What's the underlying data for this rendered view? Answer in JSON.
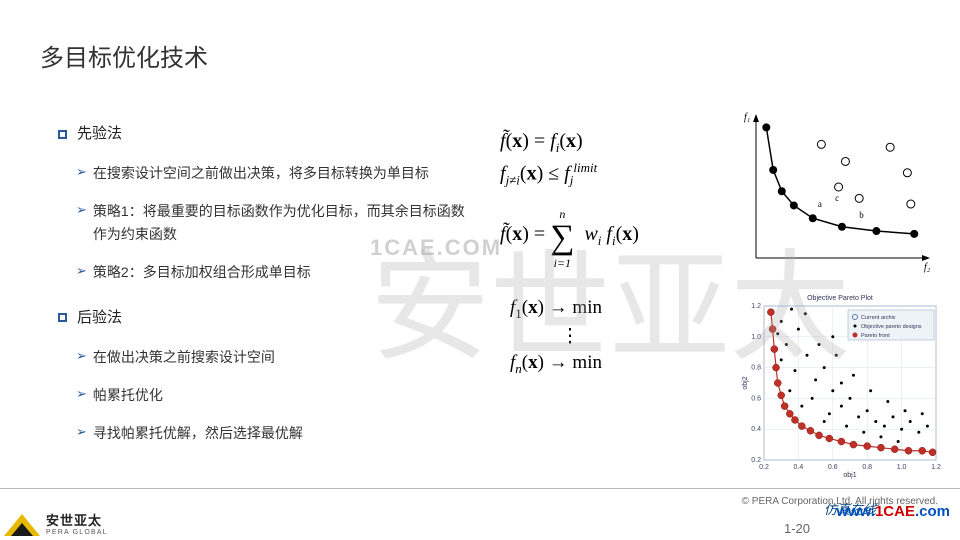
{
  "title": "多目标优化技术",
  "section1": {
    "heading": "先验法",
    "items": [
      "在搜索设计空间之前做出决策，将多目标转换为单目标",
      "策略1：将最重要的目标函数作为优化目标，而其余目标函数作为约束函数",
      "策略2：多目标加权组合形成单目标"
    ]
  },
  "section2": {
    "heading": "后验法",
    "items": [
      "在做出决策之前搜索设计空间",
      "帕累托优化",
      "寻找帕累托优解，然后选择最优解"
    ]
  },
  "equations": {
    "e1a": "f̃(x) = fᵢ(x)",
    "e1b_lhs": "f",
    "e1b_sub": "j≠i",
    "e1b_mid": "(x) ≤ f",
    "e1b_sub2": "j",
    "e1b_sup": "limit",
    "e2_lhs": "f̃(x) = ",
    "e2_sum_top": "n",
    "e2_sum_bot": "i=1",
    "e2_rhs": " wᵢ fᵢ(x)",
    "e3a": "f₁(x) → min",
    "e3b": "⋮",
    "e3c": "fₙ(x) → min"
  },
  "chart_top": {
    "type": "scatter-line",
    "axis_x_label": "f₂",
    "axis_y_label": "f₁",
    "axis_color": "#000000",
    "line_color": "#000000",
    "filled_marker_color": "#000000",
    "open_marker_color": "#ffffff",
    "open_marker_border": "#000000",
    "marker_radius": 4,
    "line_width": 1.5,
    "front_points": [
      [
        0.06,
        0.92
      ],
      [
        0.1,
        0.62
      ],
      [
        0.15,
        0.47
      ],
      [
        0.22,
        0.37
      ],
      [
        0.33,
        0.28
      ],
      [
        0.5,
        0.22
      ],
      [
        0.7,
        0.19
      ],
      [
        0.92,
        0.17
      ]
    ],
    "dominated_points": [
      [
        0.38,
        0.8
      ],
      [
        0.52,
        0.68
      ],
      [
        0.78,
        0.78
      ],
      [
        0.88,
        0.6
      ],
      [
        0.48,
        0.5
      ],
      [
        0.6,
        0.42
      ],
      [
        0.9,
        0.38
      ]
    ],
    "annot": {
      "a": [
        0.36,
        0.36
      ],
      "b": [
        0.6,
        0.28
      ],
      "c": [
        0.46,
        0.4
      ]
    }
  },
  "chart_bot": {
    "type": "scatter",
    "title": "Objective Pareto Plot",
    "title_fontsize": 7,
    "axis_x_label": "obj1",
    "axis_y_label": "obj2",
    "label_fontsize": 7,
    "xlim": [
      0.2,
      1.2
    ],
    "ylim": [
      0.2,
      1.2
    ],
    "xticks": [
      0.2,
      0.4,
      0.6,
      0.8,
      1.0,
      1.2
    ],
    "yticks": [
      0.2,
      0.4,
      0.6,
      0.8,
      1.0,
      1.2
    ],
    "background": "#ffffff",
    "grid_color": "#d7e3ee",
    "border_color": "#7a98b8",
    "legend": {
      "bg": "#eef3f8",
      "border": "#9db5cc",
      "items": [
        {
          "label": "Current archiv",
          "marker": "open-circle",
          "color": "#5a7fa8"
        },
        {
          "label": "Objective pareto designs",
          "marker": "dot",
          "color": "#000000"
        },
        {
          "label": "Pareto front",
          "marker": "filled-circle",
          "color": "#c03028"
        }
      ]
    },
    "black_points": [
      [
        0.3,
        1.1
      ],
      [
        0.28,
        1.02
      ],
      [
        0.33,
        0.95
      ],
      [
        0.4,
        1.05
      ],
      [
        0.45,
        0.88
      ],
      [
        0.38,
        0.78
      ],
      [
        0.5,
        0.72
      ],
      [
        0.55,
        0.8
      ],
      [
        0.48,
        0.6
      ],
      [
        0.6,
        0.65
      ],
      [
        0.65,
        0.55
      ],
      [
        0.58,
        0.5
      ],
      [
        0.7,
        0.6
      ],
      [
        0.75,
        0.48
      ],
      [
        0.68,
        0.42
      ],
      [
        0.8,
        0.52
      ],
      [
        0.85,
        0.45
      ],
      [
        0.78,
        0.38
      ],
      [
        0.9,
        0.42
      ],
      [
        0.95,
        0.48
      ],
      [
        0.88,
        0.35
      ],
      [
        1.0,
        0.4
      ],
      [
        1.05,
        0.45
      ],
      [
        0.98,
        0.32
      ],
      [
        1.1,
        0.38
      ],
      [
        1.15,
        0.42
      ],
      [
        0.52,
        0.95
      ],
      [
        0.62,
        0.88
      ],
      [
        0.72,
        0.75
      ],
      [
        0.82,
        0.65
      ],
      [
        0.92,
        0.58
      ],
      [
        1.02,
        0.52
      ],
      [
        1.12,
        0.5
      ],
      [
        0.35,
        0.65
      ],
      [
        0.42,
        0.55
      ],
      [
        0.55,
        0.45
      ],
      [
        0.44,
        1.15
      ],
      [
        0.36,
        1.18
      ],
      [
        0.3,
        0.85
      ],
      [
        0.65,
        0.7
      ],
      [
        0.6,
        1.0
      ]
    ],
    "red_points": [
      [
        0.24,
        1.16
      ],
      [
        0.25,
        1.05
      ],
      [
        0.26,
        0.92
      ],
      [
        0.27,
        0.8
      ],
      [
        0.28,
        0.7
      ],
      [
        0.3,
        0.62
      ],
      [
        0.32,
        0.55
      ],
      [
        0.35,
        0.5
      ],
      [
        0.38,
        0.46
      ],
      [
        0.42,
        0.42
      ],
      [
        0.47,
        0.39
      ],
      [
        0.52,
        0.36
      ],
      [
        0.58,
        0.34
      ],
      [
        0.65,
        0.32
      ],
      [
        0.72,
        0.3
      ],
      [
        0.8,
        0.29
      ],
      [
        0.88,
        0.28
      ],
      [
        0.96,
        0.27
      ],
      [
        1.04,
        0.26
      ],
      [
        1.12,
        0.26
      ],
      [
        1.18,
        0.25
      ]
    ],
    "red_line_color": "#c03028",
    "red_marker_radius": 3.5,
    "black_marker_radius": 1.5
  },
  "footer": {
    "logo_cn": "安世亚太",
    "logo_en": "PERA GLOBAL",
    "copyright": "©   PERA Corporation Ltd. All rights reserved.",
    "page": "1-20"
  },
  "watermark": {
    "big1": "安世亚太",
    "small": "1CAE.COM",
    "label": "仿真在线",
    "url_pre": "www.",
    "url_mid": "1CAE",
    "url_suf": ".com"
  }
}
